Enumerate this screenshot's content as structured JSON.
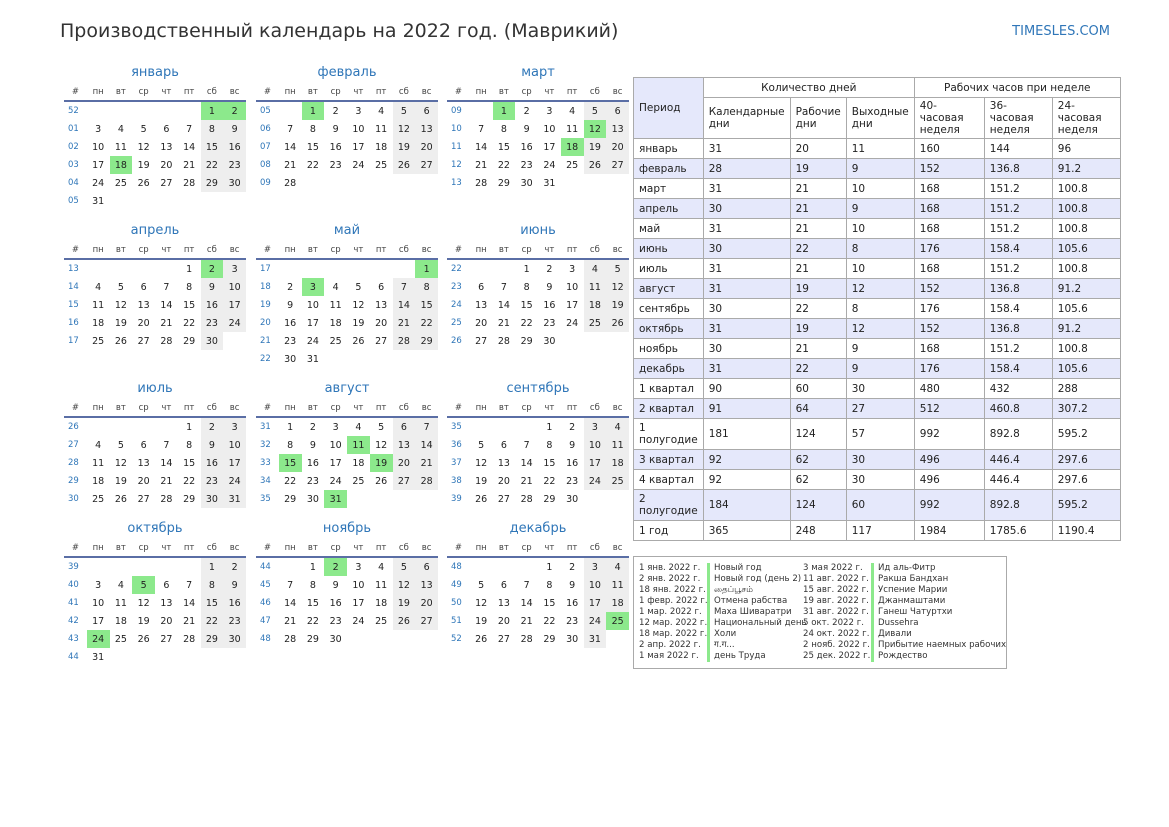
{
  "title": "Производственный календарь на 2022 год. (Маврикий)",
  "site": "TIMESLES.COM",
  "weekday_header": [
    "#",
    "пн",
    "вт",
    "ср",
    "чт",
    "пт",
    "сб",
    "вс"
  ],
  "months": [
    {
      "name": "январь",
      "weeks": [
        [
          "52",
          "",
          "",
          "",
          "",
          "",
          "1",
          "2"
        ],
        [
          "01",
          "3",
          "4",
          "5",
          "6",
          "7",
          "8",
          "9"
        ],
        [
          "02",
          "10",
          "11",
          "12",
          "13",
          "14",
          "15",
          "16"
        ],
        [
          "03",
          "17",
          "18",
          "19",
          "20",
          "21",
          "22",
          "23"
        ],
        [
          "04",
          "24",
          "25",
          "26",
          "27",
          "28",
          "29",
          "30"
        ],
        [
          "05",
          "31",
          "",
          "",
          "",
          "",
          "",
          ""
        ]
      ],
      "holidays": [
        "1",
        "2",
        "18"
      ]
    },
    {
      "name": "февраль",
      "weeks": [
        [
          "05",
          "",
          "1",
          "2",
          "3",
          "4",
          "5",
          "6"
        ],
        [
          "06",
          "7",
          "8",
          "9",
          "10",
          "11",
          "12",
          "13"
        ],
        [
          "07",
          "14",
          "15",
          "16",
          "17",
          "18",
          "19",
          "20"
        ],
        [
          "08",
          "21",
          "22",
          "23",
          "24",
          "25",
          "26",
          "27"
        ],
        [
          "09",
          "28",
          "",
          "",
          "",
          "",
          "",
          ""
        ]
      ],
      "holidays": [
        "1"
      ]
    },
    {
      "name": "март",
      "weeks": [
        [
          "09",
          "",
          "1",
          "2",
          "3",
          "4",
          "5",
          "6"
        ],
        [
          "10",
          "7",
          "8",
          "9",
          "10",
          "11",
          "12",
          "13"
        ],
        [
          "11",
          "14",
          "15",
          "16",
          "17",
          "18",
          "19",
          "20"
        ],
        [
          "12",
          "21",
          "22",
          "23",
          "24",
          "25",
          "26",
          "27"
        ],
        [
          "13",
          "28",
          "29",
          "30",
          "31",
          "",
          "",
          ""
        ]
      ],
      "holidays": [
        "1",
        "12",
        "18"
      ]
    },
    {
      "name": "апрель",
      "weeks": [
        [
          "13",
          "",
          "",
          "",
          "",
          "1",
          "2",
          "3"
        ],
        [
          "14",
          "4",
          "5",
          "6",
          "7",
          "8",
          "9",
          "10"
        ],
        [
          "15",
          "11",
          "12",
          "13",
          "14",
          "15",
          "16",
          "17"
        ],
        [
          "16",
          "18",
          "19",
          "20",
          "21",
          "22",
          "23",
          "24"
        ],
        [
          "17",
          "25",
          "26",
          "27",
          "28",
          "29",
          "30",
          ""
        ]
      ],
      "holidays": [
        "2"
      ]
    },
    {
      "name": "май",
      "weeks": [
        [
          "17",
          "",
          "",
          "",
          "",
          "",
          "",
          "1"
        ],
        [
          "18",
          "2",
          "3",
          "4",
          "5",
          "6",
          "7",
          "8"
        ],
        [
          "19",
          "9",
          "10",
          "11",
          "12",
          "13",
          "14",
          "15"
        ],
        [
          "20",
          "16",
          "17",
          "18",
          "19",
          "20",
          "21",
          "22"
        ],
        [
          "21",
          "23",
          "24",
          "25",
          "26",
          "27",
          "28",
          "29"
        ],
        [
          "22",
          "30",
          "31",
          "",
          "",
          "",
          "",
          ""
        ]
      ],
      "holidays": [
        "1",
        "3"
      ]
    },
    {
      "name": "июнь",
      "weeks": [
        [
          "22",
          "",
          "",
          "1",
          "2",
          "3",
          "4",
          "5"
        ],
        [
          "23",
          "6",
          "7",
          "8",
          "9",
          "10",
          "11",
          "12"
        ],
        [
          "24",
          "13",
          "14",
          "15",
          "16",
          "17",
          "18",
          "19"
        ],
        [
          "25",
          "20",
          "21",
          "22",
          "23",
          "24",
          "25",
          "26"
        ],
        [
          "26",
          "27",
          "28",
          "29",
          "30",
          "",
          "",
          ""
        ]
      ],
      "holidays": []
    },
    {
      "name": "июль",
      "weeks": [
        [
          "26",
          "",
          "",
          "",
          "",
          "1",
          "2",
          "3"
        ],
        [
          "27",
          "4",
          "5",
          "6",
          "7",
          "8",
          "9",
          "10"
        ],
        [
          "28",
          "11",
          "12",
          "13",
          "14",
          "15",
          "16",
          "17"
        ],
        [
          "29",
          "18",
          "19",
          "20",
          "21",
          "22",
          "23",
          "24"
        ],
        [
          "30",
          "25",
          "26",
          "27",
          "28",
          "29",
          "30",
          "31"
        ]
      ],
      "holidays": []
    },
    {
      "name": "август",
      "weeks": [
        [
          "31",
          "1",
          "2",
          "3",
          "4",
          "5",
          "6",
          "7"
        ],
        [
          "32",
          "8",
          "9",
          "10",
          "11",
          "12",
          "13",
          "14"
        ],
        [
          "33",
          "15",
          "16",
          "17",
          "18",
          "19",
          "20",
          "21"
        ],
        [
          "34",
          "22",
          "23",
          "24",
          "25",
          "26",
          "27",
          "28"
        ],
        [
          "35",
          "29",
          "30",
          "31",
          "",
          "",
          "",
          ""
        ]
      ],
      "holidays": [
        "11",
        "15",
        "19",
        "31"
      ]
    },
    {
      "name": "сентябрь",
      "weeks": [
        [
          "35",
          "",
          "",
          "",
          "1",
          "2",
          "3",
          "4"
        ],
        [
          "36",
          "5",
          "6",
          "7",
          "8",
          "9",
          "10",
          "11"
        ],
        [
          "37",
          "12",
          "13",
          "14",
          "15",
          "16",
          "17",
          "18"
        ],
        [
          "38",
          "19",
          "20",
          "21",
          "22",
          "23",
          "24",
          "25"
        ],
        [
          "39",
          "26",
          "27",
          "28",
          "29",
          "30",
          "",
          ""
        ]
      ],
      "holidays": []
    },
    {
      "name": "октябрь",
      "weeks": [
        [
          "39",
          "",
          "",
          "",
          "",
          "",
          "1",
          "2"
        ],
        [
          "40",
          "3",
          "4",
          "5",
          "6",
          "7",
          "8",
          "9"
        ],
        [
          "41",
          "10",
          "11",
          "12",
          "13",
          "14",
          "15",
          "16"
        ],
        [
          "42",
          "17",
          "18",
          "19",
          "20",
          "21",
          "22",
          "23"
        ],
        [
          "43",
          "24",
          "25",
          "26",
          "27",
          "28",
          "29",
          "30"
        ],
        [
          "44",
          "31",
          "",
          "",
          "",
          "",
          "",
          ""
        ]
      ],
      "holidays": [
        "5",
        "24"
      ]
    },
    {
      "name": "ноябрь",
      "weeks": [
        [
          "44",
          "",
          "1",
          "2",
          "3",
          "4",
          "5",
          "6"
        ],
        [
          "45",
          "7",
          "8",
          "9",
          "10",
          "11",
          "12",
          "13"
        ],
        [
          "46",
          "14",
          "15",
          "16",
          "17",
          "18",
          "19",
          "20"
        ],
        [
          "47",
          "21",
          "22",
          "23",
          "24",
          "25",
          "26",
          "27"
        ],
        [
          "48",
          "28",
          "29",
          "30",
          "",
          "",
          "",
          ""
        ]
      ],
      "holidays": [
        "2"
      ]
    },
    {
      "name": "декабрь",
      "weeks": [
        [
          "48",
          "",
          "",
          "",
          "1",
          "2",
          "3",
          "4"
        ],
        [
          "49",
          "5",
          "6",
          "7",
          "8",
          "9",
          "10",
          "11"
        ],
        [
          "50",
          "12",
          "13",
          "14",
          "15",
          "16",
          "17",
          "18"
        ],
        [
          "51",
          "19",
          "20",
          "21",
          "22",
          "23",
          "24",
          "25"
        ],
        [
          "52",
          "26",
          "27",
          "28",
          "29",
          "30",
          "31",
          ""
        ]
      ],
      "holidays": [
        "25"
      ]
    }
  ],
  "summary": {
    "period_label": "Период",
    "days_group": "Количество дней",
    "hours_group": "Рабочих часов при неделе",
    "columns": [
      "Календарные дни",
      "Рабочие дни",
      "Выходные дни",
      "40-часовая неделя",
      "36-часовая неделя",
      "24-часовая неделя"
    ],
    "rows": [
      [
        "январь",
        "31",
        "20",
        "11",
        "160",
        "144",
        "96"
      ],
      [
        "февраль",
        "28",
        "19",
        "9",
        "152",
        "136.8",
        "91.2"
      ],
      [
        "март",
        "31",
        "21",
        "10",
        "168",
        "151.2",
        "100.8"
      ],
      [
        "апрель",
        "30",
        "21",
        "9",
        "168",
        "151.2",
        "100.8"
      ],
      [
        "май",
        "31",
        "21",
        "10",
        "168",
        "151.2",
        "100.8"
      ],
      [
        "июнь",
        "30",
        "22",
        "8",
        "176",
        "158.4",
        "105.6"
      ],
      [
        "июль",
        "31",
        "21",
        "10",
        "168",
        "151.2",
        "100.8"
      ],
      [
        "август",
        "31",
        "19",
        "12",
        "152",
        "136.8",
        "91.2"
      ],
      [
        "сентябрь",
        "30",
        "22",
        "8",
        "176",
        "158.4",
        "105.6"
      ],
      [
        "октябрь",
        "31",
        "19",
        "12",
        "152",
        "136.8",
        "91.2"
      ],
      [
        "ноябрь",
        "30",
        "21",
        "9",
        "168",
        "151.2",
        "100.8"
      ],
      [
        "декабрь",
        "31",
        "22",
        "9",
        "176",
        "158.4",
        "105.6"
      ],
      [
        "1 квартал",
        "90",
        "60",
        "30",
        "480",
        "432",
        "288"
      ],
      [
        "2 квартал",
        "91",
        "64",
        "27",
        "512",
        "460.8",
        "307.2"
      ],
      [
        "1 полугодие",
        "181",
        "124",
        "57",
        "992",
        "892.8",
        "595.2"
      ],
      [
        "3 квартал",
        "92",
        "62",
        "30",
        "496",
        "446.4",
        "297.6"
      ],
      [
        "4 квартал",
        "92",
        "62",
        "30",
        "496",
        "446.4",
        "297.6"
      ],
      [
        "2 полугодие",
        "184",
        "124",
        "60",
        "992",
        "892.8",
        "595.2"
      ],
      [
        "1 год",
        "365",
        "248",
        "117",
        "1984",
        "1785.6",
        "1190.4"
      ]
    ]
  },
  "holiday_list": [
    [
      [
        "1 янв. 2022 г.",
        "Новый год"
      ],
      [
        "2 янв. 2022 г.",
        "Новый год (день 2)"
      ],
      [
        "18 янв. 2022 г.",
        "தைப்பூசம்"
      ],
      [
        "1 февр. 2022 г.",
        "Отмена рабства"
      ],
      [
        "1 мар. 2022 г.",
        "Маха Шиваратри"
      ],
      [
        "12 мар. 2022 г.",
        "Национальный день"
      ],
      [
        "18 мар. 2022 г.",
        "Холи"
      ],
      [
        "2 апр. 2022 г.",
        "ग.ग..."
      ],
      [
        "1 мая 2022 г.",
        "день Труда"
      ]
    ],
    [
      [
        "3 мая 2022 г.",
        "Ид аль-Фитр"
      ],
      [
        "11 авг. 2022 г.",
        "Ракша Бандхан"
      ],
      [
        "15 авг. 2022 г.",
        "Успение Марии"
      ],
      [
        "19 авг. 2022 г.",
        "Джанмаштами"
      ],
      [
        "31 авг. 2022 г.",
        "Ганеш Чатуртхи"
      ],
      [
        "5 окт. 2022 г.",
        "Dussehra"
      ],
      [
        "24 окт. 2022 г.",
        "Дивали"
      ],
      [
        "2 нояб. 2022 г.",
        "Прибытие наемных рабочих"
      ],
      [
        "25 дек. 2022 г.",
        "Рождество"
      ]
    ]
  ]
}
